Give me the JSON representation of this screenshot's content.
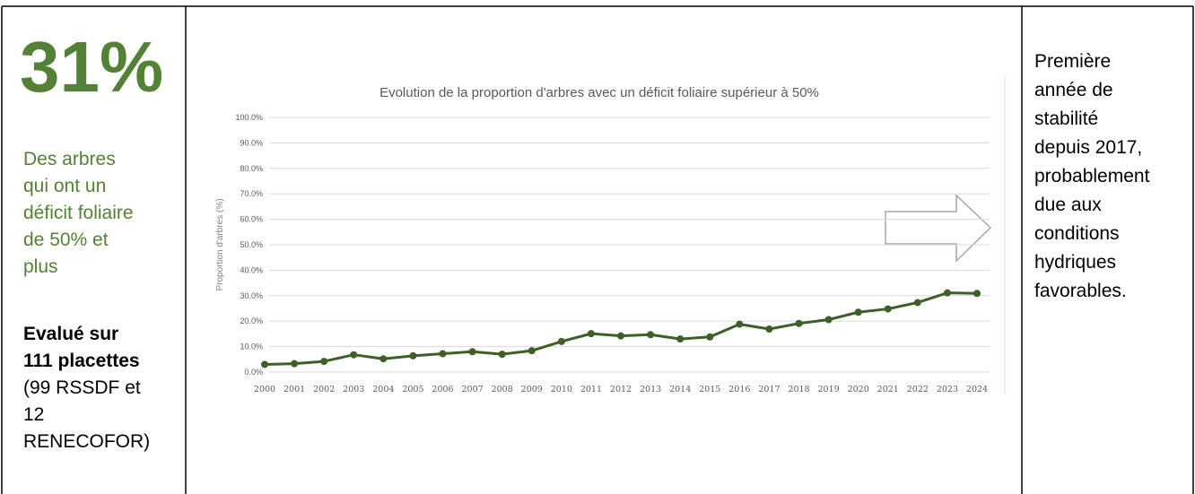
{
  "left": {
    "headline": "31%",
    "description_lines": [
      "Des arbres",
      "qui ont un",
      "déficit foliaire",
      "de 50% et",
      "plus"
    ],
    "note_bold_lines": [
      "Evalué sur",
      "111 placettes"
    ],
    "note_lines": [
      "(99 RSSDF et",
      "12",
      "RENECOFOR)"
    ]
  },
  "chart_data": {
    "type": "line",
    "title": "Evolution de la proportion d'arbres avec un déficit foliaire supérieur à 50%",
    "y_label": "Proportion d'arbres (%)",
    "categories": [
      "2000",
      "2001",
      "2002",
      "2003",
      "2004",
      "2005",
      "2006",
      "2007",
      "2008",
      "2009",
      "2010",
      "2011",
      "2012",
      "2013",
      "2014",
      "2015",
      "2016",
      "2017",
      "2018",
      "2019",
      "2020",
      "2021",
      "2022",
      "2023",
      "2024"
    ],
    "values": [
      3.0,
      3.3,
      4.2,
      6.8,
      5.2,
      6.4,
      7.2,
      8.0,
      7.0,
      8.4,
      12.0,
      15.1,
      14.2,
      14.7,
      13.0,
      13.8,
      18.8,
      16.9,
      19.1,
      20.6,
      23.5,
      24.8,
      27.3,
      31.1,
      30.9
    ],
    "color": "#3d5f28",
    "ylim": [
      0,
      100
    ],
    "yticks": [
      {
        "value": 0,
        "label": "0.0%"
      },
      {
        "value": 10,
        "label": "10.0%"
      },
      {
        "value": 20,
        "label": "20.0%"
      },
      {
        "value": 30,
        "label": "30.0%"
      },
      {
        "value": 40,
        "label": "40.0%"
      },
      {
        "value": 50,
        "label": "50.0%"
      },
      {
        "value": 60,
        "label": "60.0%"
      },
      {
        "value": 70,
        "label": "70.0%"
      },
      {
        "value": 80,
        "label": "80.0%"
      },
      {
        "value": 90,
        "label": "90.0%"
      },
      {
        "value": 100,
        "label": "100.0%"
      }
    ],
    "grid": true
  },
  "right": {
    "lines": [
      "Première",
      "année de",
      "stabilité",
      "depuis 2017,",
      "probablement",
      "due aux",
      "conditions",
      "hydriques",
      "favorables."
    ]
  }
}
